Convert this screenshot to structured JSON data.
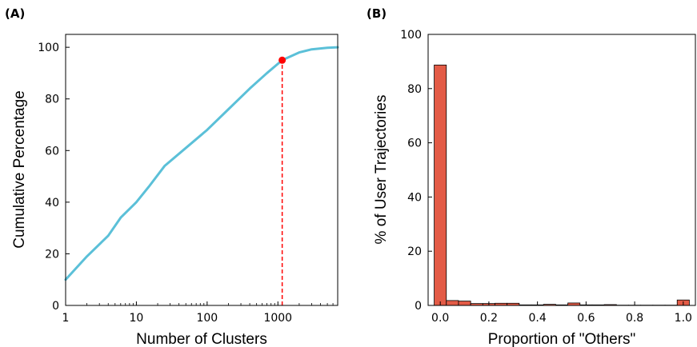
{
  "chart_data": [
    {
      "panel_label": "(A)",
      "type": "line",
      "xlabel": "Number of Clusters",
      "ylabel": "Cumulative Percentage",
      "x_scale": "log",
      "xlim": [
        1,
        7000
      ],
      "ylim": [
        0,
        105
      ],
      "x_ticks": [
        {
          "value": 1,
          "label": "1"
        },
        {
          "value": 10,
          "label": "10"
        },
        {
          "value": 100,
          "label": "100"
        },
        {
          "value": 1000,
          "label": "1000"
        }
      ],
      "y_ticks": [
        {
          "value": 0,
          "label": "0"
        },
        {
          "value": 20,
          "label": "20"
        },
        {
          "value": 40,
          "label": "40"
        },
        {
          "value": 60,
          "label": "60"
        },
        {
          "value": 80,
          "label": "80"
        },
        {
          "value": 100,
          "label": "100"
        }
      ],
      "series": [
        {
          "color": "#5bc0d8",
          "x": [
            1,
            2,
            4,
            6,
            10,
            15,
            25,
            50,
            100,
            200,
            400,
            700,
            1150,
            2000,
            3000,
            5000,
            7000
          ],
          "y": [
            10,
            19,
            27,
            34,
            40,
            46,
            54,
            61,
            68,
            76,
            84,
            90,
            95,
            98,
            99.2,
            99.8,
            100
          ]
        }
      ],
      "marker": {
        "x": 1150,
        "y": 95,
        "color": "#ff0000"
      },
      "marker_dropline": {
        "x": 1150,
        "from_y": 0,
        "to_y": 95,
        "color": "#ff0000",
        "style": "dashed"
      },
      "grid": false
    },
    {
      "panel_label": "(B)",
      "type": "bar",
      "xlabel": "Proportion of \"Others\"",
      "ylabel": "% of User Trajectories",
      "xlim": [
        -0.05,
        1.05
      ],
      "ylim": [
        0,
        100
      ],
      "bin_width": 0.05,
      "bar_color": "#e35b46",
      "x_ticks": [
        {
          "value": 0.0,
          "label": "0.0"
        },
        {
          "value": 0.2,
          "label": "0.2"
        },
        {
          "value": 0.4,
          "label": "0.4"
        },
        {
          "value": 0.6,
          "label": "0.6"
        },
        {
          "value": 0.8,
          "label": "0.8"
        },
        {
          "value": 1.0,
          "label": "1.0"
        }
      ],
      "y_ticks": [
        {
          "value": 0,
          "label": "0"
        },
        {
          "value": 20,
          "label": "20"
        },
        {
          "value": 40,
          "label": "40"
        },
        {
          "value": 60,
          "label": "60"
        },
        {
          "value": 80,
          "label": "80"
        },
        {
          "value": 100,
          "label": "100"
        }
      ],
      "bin_starts": [
        -0.025,
        0.025,
        0.075,
        0.125,
        0.175,
        0.225,
        0.275,
        0.325,
        0.375,
        0.425,
        0.475,
        0.525,
        0.575,
        0.625,
        0.675,
        0.725,
        0.775,
        0.825,
        0.875,
        0.925,
        0.975
      ],
      "values": [
        88.7,
        1.8,
        1.6,
        0.7,
        0.7,
        0.8,
        0.8,
        0.2,
        0.2,
        0.4,
        0.2,
        0.9,
        0.2,
        0.2,
        0.3,
        0.1,
        0.1,
        0.1,
        0.1,
        0.1,
        2.0
      ],
      "grid": false
    }
  ]
}
